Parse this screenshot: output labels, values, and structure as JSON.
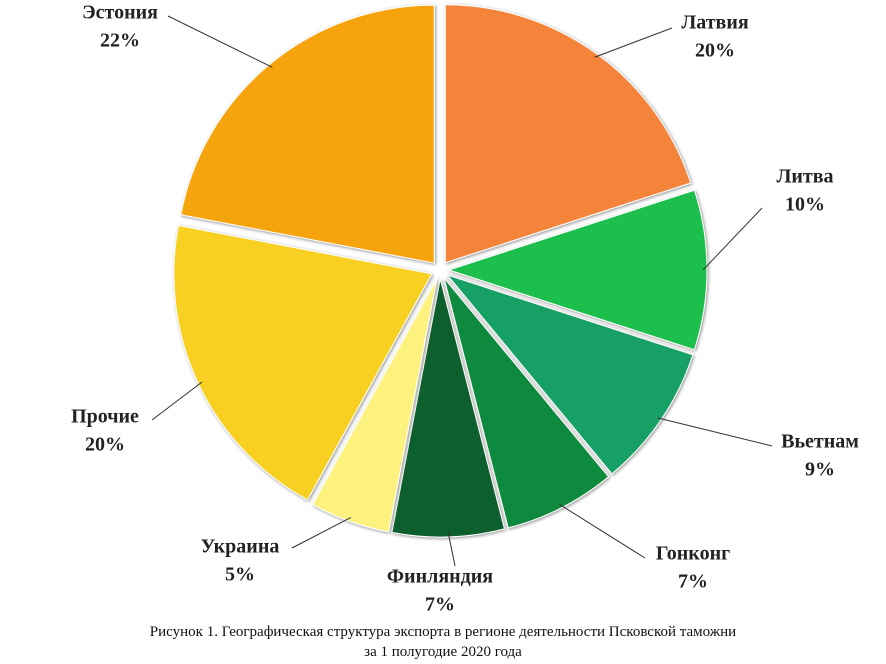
{
  "chart_data": {
    "type": "pie",
    "categories": [
      "Латвия",
      "Литва",
      "Вьетнам",
      "Гонконг",
      "Финляндия",
      "Украина",
      "Прочие",
      "Эстония"
    ],
    "values": [
      20,
      10,
      9,
      7,
      7,
      5,
      20,
      22
    ],
    "value_labels": [
      "20%",
      "10%",
      "9%",
      "7%",
      "7%",
      "5%",
      "20%",
      "22%"
    ],
    "colors": [
      "#f5843a",
      "#1dbf4c",
      "#13a065",
      "#0e8a3e",
      "#0b5e2e",
      "#fdf27d",
      "#f8d020",
      "#f6a40e"
    ],
    "caption": [
      "Рисунок 1. Географическая структура экспорта в регионе деятельности Псковской таможни",
      "за 1 полугодие 2020 года"
    ]
  }
}
